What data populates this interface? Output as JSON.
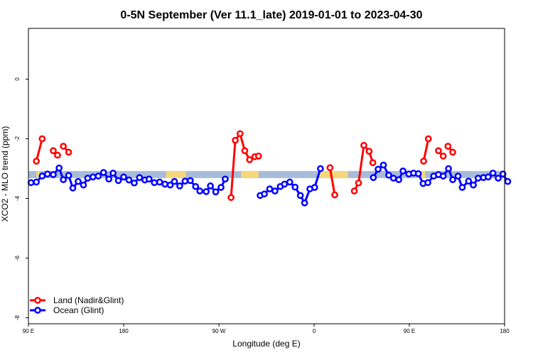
{
  "chart_data": {
    "type": "line",
    "title": "0-5N September (Ver 11.1_late)   2019-01-01 to 2023-04-30",
    "xlabel": "Longitude (deg E)",
    "ylabel": "XCO2 - MLO trend (ppm)",
    "xlim": [
      90,
      540
    ],
    "ylim": [
      -8.2,
      1.7
    ],
    "x_ticks": [
      {
        "value": 90,
        "label": "90 E"
      },
      {
        "value": 180,
        "label": "180"
      },
      {
        "value": 270,
        "label": "90 W"
      },
      {
        "value": 360,
        "label": "0"
      },
      {
        "value": 450,
        "label": "90 E"
      },
      {
        "value": 540,
        "label": "180"
      }
    ],
    "y_ticks": [
      {
        "value": 0,
        "label": "0"
      },
      {
        "value": -2,
        "label": "-2"
      },
      {
        "value": -4,
        "label": "-4"
      },
      {
        "value": -6,
        "label": "-6"
      },
      {
        "value": -8,
        "label": "-8"
      }
    ],
    "grid": false,
    "legend_position": "bottom-left",
    "land_mask": {
      "y": -3.2,
      "ocean_color": "#a8bcd9",
      "land_color": "#f5d77a",
      "land_segments": [
        [
          97.5,
          100.5
        ],
        [
          220,
          239
        ],
        [
          291,
          307.5
        ],
        [
          365,
          392
        ],
        [
          457,
          465
        ]
      ]
    },
    "series": [
      {
        "name": "Land (Nadir&Glint)",
        "color": "#ff0000",
        "segments": [
          [
            [
              97.5,
              -2.75
            ],
            [
              103,
              -2.0
            ]
          ],
          [
            [
              113.5,
              -2.4
            ],
            [
              117.5,
              -2.55
            ]
          ],
          [
            [
              123,
              -2.25
            ],
            [
              128,
              -2.45
            ]
          ],
          [
            [
              281.5,
              -3.97
            ],
            [
              285.5,
              -2.05
            ],
            [
              290,
              -1.83
            ],
            [
              294.5,
              -2.4
            ],
            [
              299,
              -2.7
            ],
            [
              304,
              -2.6
            ],
            [
              307.5,
              -2.58
            ]
          ],
          [
            [
              375,
              -2.97
            ],
            [
              379.5,
              -3.88
            ]
          ],
          [
            [
              398,
              -3.75
            ],
            [
              402,
              -3.48
            ],
            [
              407,
              -2.22
            ],
            [
              412,
              -2.42
            ],
            [
              415.5,
              -2.8
            ]
          ],
          [
            [
              463.5,
              -2.75
            ],
            [
              468,
              -2.0
            ]
          ],
          [
            [
              477.5,
              -2.4
            ],
            [
              482,
              -2.58
            ]
          ],
          [
            [
              486.5,
              -2.25
            ],
            [
              491,
              -2.45
            ]
          ]
        ]
      },
      {
        "name": "Ocean (Glint)",
        "color": "#0000ff",
        "segments": [
          [
            [
              92.5,
              -3.47
            ],
            [
              97.5,
              -3.45
            ],
            [
              103,
              -3.25
            ],
            [
              108,
              -3.18
            ],
            [
              113.5,
              -3.2
            ],
            [
              119,
              -2.98
            ],
            [
              123,
              -3.37
            ],
            [
              128,
              -3.23
            ],
            [
              132,
              -3.65
            ],
            [
              137,
              -3.43
            ],
            [
              142,
              -3.55
            ],
            [
              146,
              -3.32
            ],
            [
              151,
              -3.28
            ],
            [
              156,
              -3.25
            ],
            [
              161,
              -3.13
            ],
            [
              166,
              -3.35
            ],
            [
              170,
              -3.15
            ],
            [
              175,
              -3.4
            ],
            [
              180,
              -3.28
            ],
            [
              185,
              -3.38
            ],
            [
              190,
              -3.48
            ],
            [
              195,
              -3.3
            ],
            [
              200,
              -3.38
            ],
            [
              204,
              -3.35
            ],
            [
              209,
              -3.47
            ],
            [
              214,
              -3.45
            ],
            [
              219,
              -3.52
            ],
            [
              224,
              -3.55
            ],
            [
              228,
              -3.43
            ],
            [
              233,
              -3.58
            ],
            [
              238,
              -3.42
            ],
            [
              243,
              -3.4
            ],
            [
              248,
              -3.6
            ],
            [
              252,
              -3.75
            ],
            [
              258,
              -3.77
            ],
            [
              262,
              -3.58
            ],
            [
              267,
              -3.78
            ],
            [
              272,
              -3.63
            ],
            [
              276,
              -3.35
            ]
          ],
          [
            [
              309,
              -3.9
            ],
            [
              313,
              -3.85
            ],
            [
              318,
              -3.68
            ],
            [
              323,
              -3.75
            ],
            [
              328,
              -3.6
            ],
            [
              332,
              -3.52
            ],
            [
              337,
              -3.45
            ],
            [
              342,
              -3.62
            ],
            [
              347,
              -3.9
            ],
            [
              351,
              -4.15
            ],
            [
              356,
              -3.68
            ],
            [
              360.5,
              -3.63
            ],
            [
              366,
              -3.0
            ]
          ],
          [
            [
              416,
              -3.3
            ],
            [
              420.5,
              -3.02
            ],
            [
              425.5,
              -2.88
            ],
            [
              430.5,
              -3.22
            ],
            [
              435,
              -3.32
            ],
            [
              440,
              -3.37
            ],
            [
              444,
              -3.08
            ],
            [
              449.5,
              -3.18
            ],
            [
              454,
              -3.15
            ],
            [
              458.5,
              -3.17
            ],
            [
              463,
              -3.5
            ],
            [
              467.5,
              -3.47
            ],
            [
              473,
              -3.25
            ],
            [
              477.5,
              -3.2
            ],
            [
              482,
              -3.25
            ],
            [
              487,
              -3.0
            ],
            [
              491,
              -3.37
            ],
            [
              496,
              -3.25
            ],
            [
              500,
              -3.63
            ],
            [
              506,
              -3.42
            ],
            [
              510.5,
              -3.55
            ],
            [
              515,
              -3.32
            ],
            [
              520,
              -3.3
            ],
            [
              524.5,
              -3.28
            ],
            [
              529,
              -3.15
            ],
            [
              534,
              -3.32
            ],
            [
              538.5,
              -3.18
            ],
            [
              543,
              -3.43
            ]
          ]
        ]
      }
    ]
  }
}
